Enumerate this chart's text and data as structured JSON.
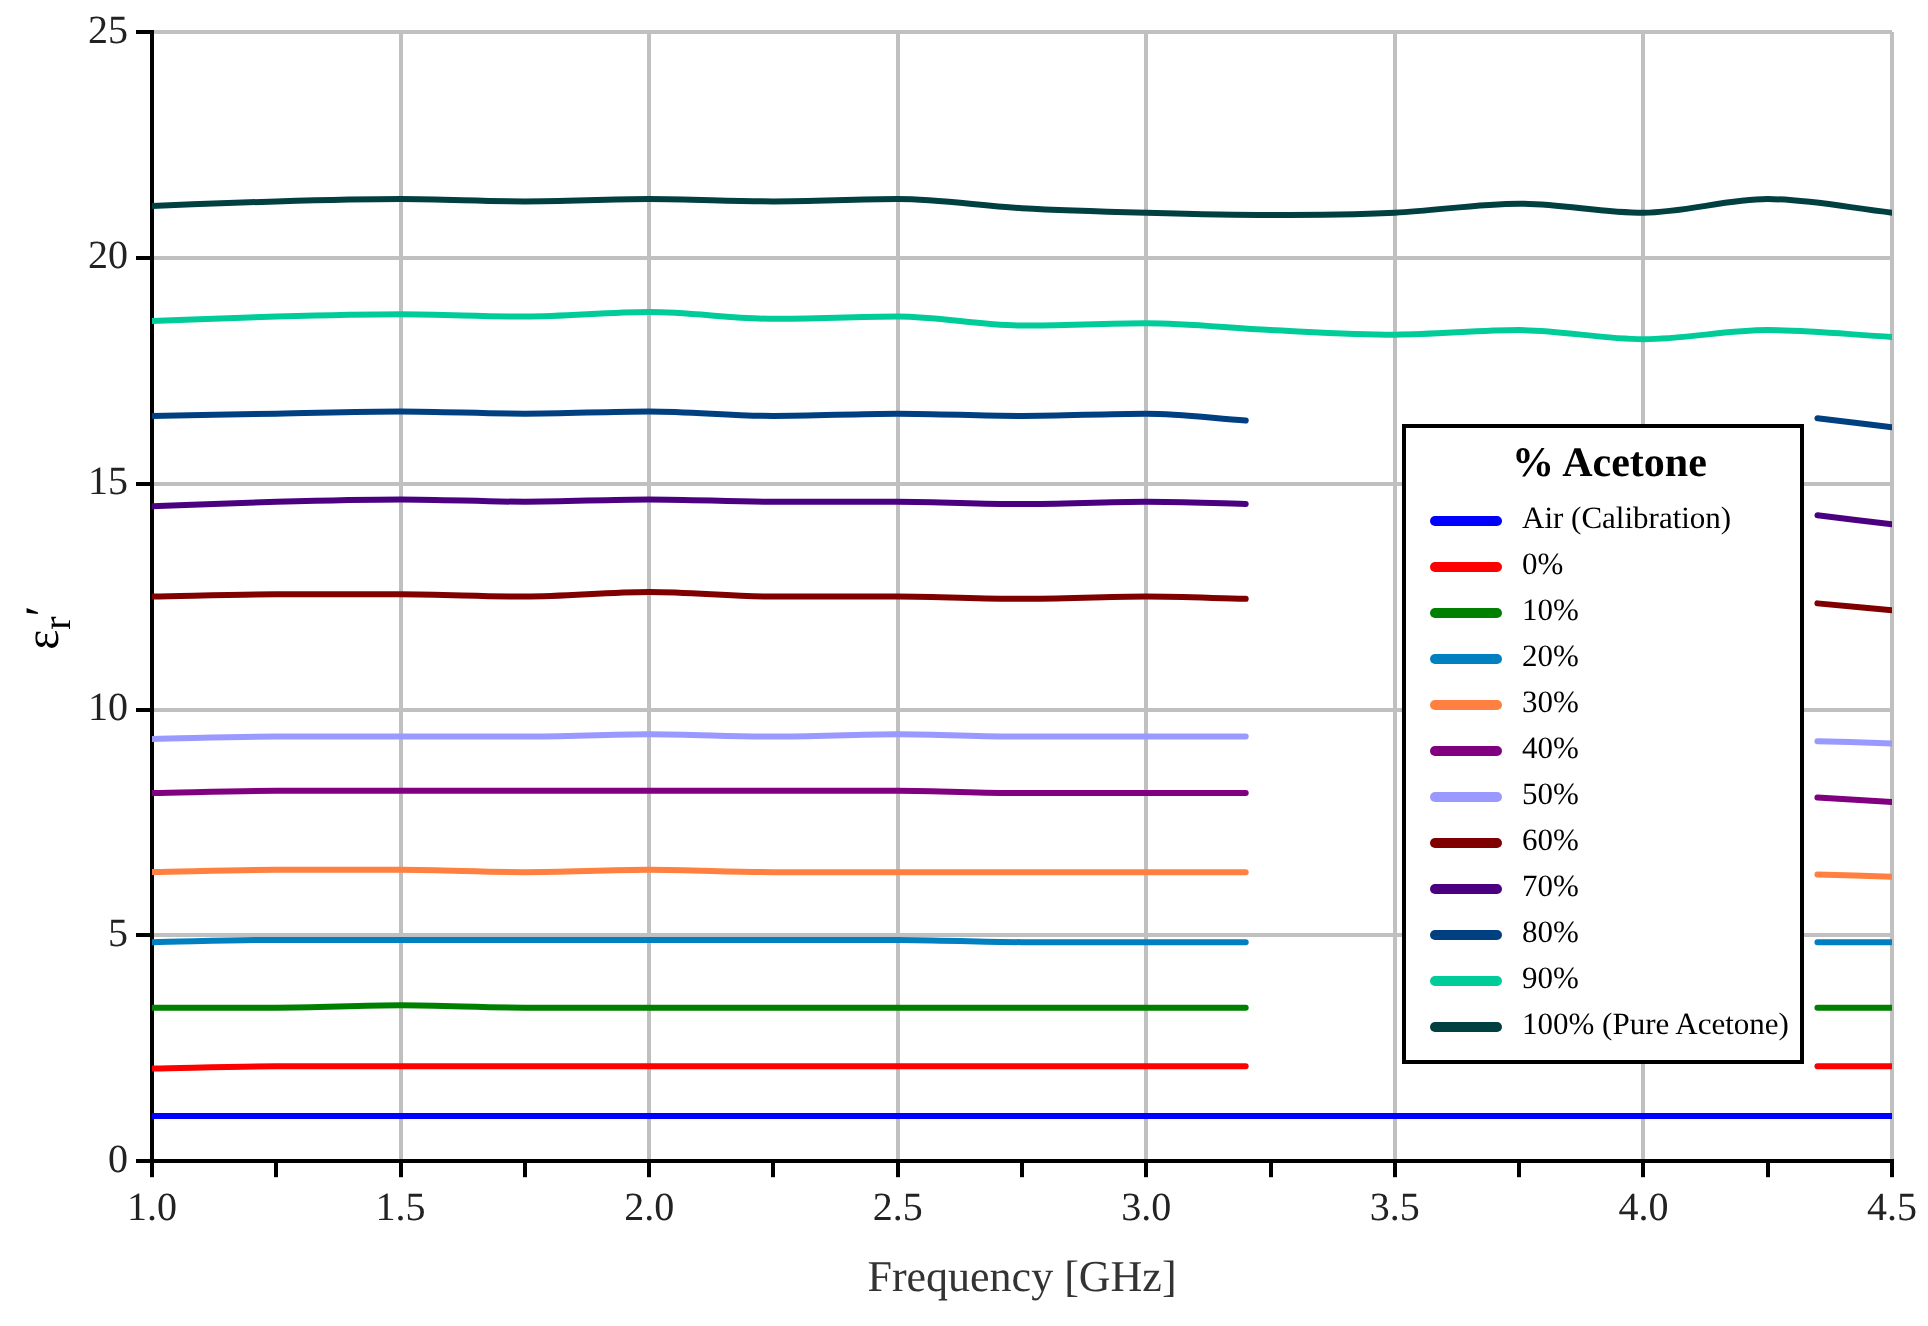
{
  "chart_data": {
    "type": "line",
    "xlabel": "Frequency [GHz]",
    "ylabel": "ε$_{r}$′",
    "legend_title": "% Acetone",
    "legend": "right",
    "grid": true,
    "marker": "none",
    "line_style": "solid",
    "x": [
      1.0,
      1.25,
      1.5,
      1.75,
      2.0,
      2.25,
      2.5,
      2.75,
      3.0,
      3.2,
      3.75,
      4.35,
      4.5
    ],
    "xlim": [
      1.0,
      4.5
    ],
    "xticks": [
      {
        "value": 1.0,
        "label": "1.0"
      },
      {
        "value": 1.25,
        "label": null
      },
      {
        "value": 1.5,
        "label": "1.5"
      },
      {
        "value": 1.75,
        "label": null
      },
      {
        "value": 2.0,
        "label": "2.0"
      },
      {
        "value": 2.25,
        "label": null
      },
      {
        "value": 2.5,
        "label": "2.5"
      },
      {
        "value": 2.75,
        "label": null
      },
      {
        "value": 3.0,
        "label": "3.0"
      },
      {
        "value": 3.25,
        "label": null
      },
      {
        "value": 3.5,
        "label": "3.5"
      },
      {
        "value": 3.75,
        "label": null
      },
      {
        "value": 4.0,
        "label": "4.0"
      },
      {
        "value": 4.25,
        "label": null
      },
      {
        "value": 4.5,
        "label": "4.5"
      }
    ],
    "ylim": [
      0,
      25
    ],
    "yticks": [
      0,
      5,
      10,
      15,
      20,
      25
    ],
    "series": [
      {
        "name": "Air (Calibration)",
        "color": "#0000ff",
        "x": [
          1.0,
          1.25,
          1.5,
          1.75,
          2.0,
          2.25,
          2.5,
          2.75,
          3.0,
          3.25,
          3.5,
          3.75,
          4.0,
          4.25,
          4.5
        ],
        "values": [
          1.0,
          1.0,
          1.0,
          1.0,
          1.0,
          1.0,
          1.0,
          1.0,
          1.0,
          1.0,
          1.0,
          1.0,
          1.0,
          1.0,
          1.0
        ]
      },
      {
        "name": "0%",
        "color": "#ff0000",
        "values": [
          2.05,
          2.1,
          2.1,
          2.1,
          2.1,
          2.1,
          2.1,
          2.1,
          2.1,
          2.1,
          null,
          2.1,
          2.1
        ]
      },
      {
        "name": "10%",
        "color": "#008000",
        "values": [
          3.4,
          3.4,
          3.45,
          3.4,
          3.4,
          3.4,
          3.4,
          3.4,
          3.4,
          3.4,
          null,
          3.4,
          3.4
        ]
      },
      {
        "name": "20%",
        "color": "#0080c0",
        "values": [
          4.85,
          4.9,
          4.9,
          4.9,
          4.9,
          4.9,
          4.9,
          4.85,
          4.85,
          4.85,
          null,
          4.85,
          4.85
        ]
      },
      {
        "name": "30%",
        "color": "#ff8040",
        "values": [
          6.4,
          6.45,
          6.45,
          6.4,
          6.45,
          6.4,
          6.4,
          6.4,
          6.4,
          6.4,
          null,
          6.35,
          6.3
        ]
      },
      {
        "name": "40%",
        "color": "#800080",
        "values": [
          8.15,
          8.2,
          8.2,
          8.2,
          8.2,
          8.2,
          8.2,
          8.15,
          8.15,
          8.15,
          null,
          8.05,
          7.95
        ]
      },
      {
        "name": "50%",
        "color": "#9999ff",
        "values": [
          9.35,
          9.4,
          9.4,
          9.4,
          9.45,
          9.4,
          9.45,
          9.4,
          9.4,
          9.4,
          null,
          9.3,
          9.25
        ]
      },
      {
        "name": "60%",
        "color": "#800000",
        "values": [
          12.5,
          12.55,
          12.55,
          12.5,
          12.6,
          12.5,
          12.5,
          12.45,
          12.5,
          12.45,
          null,
          12.35,
          12.2
        ]
      },
      {
        "name": "70%",
        "color": "#4b0082",
        "values": [
          14.5,
          14.6,
          14.65,
          14.6,
          14.65,
          14.6,
          14.6,
          14.55,
          14.6,
          14.55,
          null,
          14.3,
          14.1
        ]
      },
      {
        "name": "80%",
        "color": "#004080",
        "values": [
          16.5,
          16.55,
          16.6,
          16.55,
          16.6,
          16.5,
          16.55,
          16.5,
          16.55,
          16.4,
          null,
          16.45,
          16.25
        ]
      },
      {
        "name": "90%",
        "color": "#00cc99",
        "x": [
          1.0,
          1.25,
          1.5,
          1.75,
          2.0,
          2.25,
          2.5,
          2.75,
          3.0,
          3.25,
          3.5,
          3.75,
          4.0,
          4.25,
          4.5
        ],
        "values": [
          18.6,
          18.7,
          18.75,
          18.7,
          18.8,
          18.65,
          18.7,
          18.5,
          18.55,
          18.4,
          18.3,
          18.4,
          18.2,
          18.4,
          18.25
        ]
      },
      {
        "name": "100% (Pure Acetone)",
        "color": "#004040",
        "x": [
          1.0,
          1.25,
          1.5,
          1.75,
          2.0,
          2.25,
          2.5,
          2.75,
          3.0,
          3.25,
          3.5,
          3.75,
          4.0,
          4.25,
          4.5
        ],
        "values": [
          21.15,
          21.25,
          21.3,
          21.25,
          21.3,
          21.25,
          21.3,
          21.1,
          21.0,
          20.95,
          21.0,
          21.2,
          21.0,
          21.3,
          21.0
        ]
      }
    ]
  }
}
